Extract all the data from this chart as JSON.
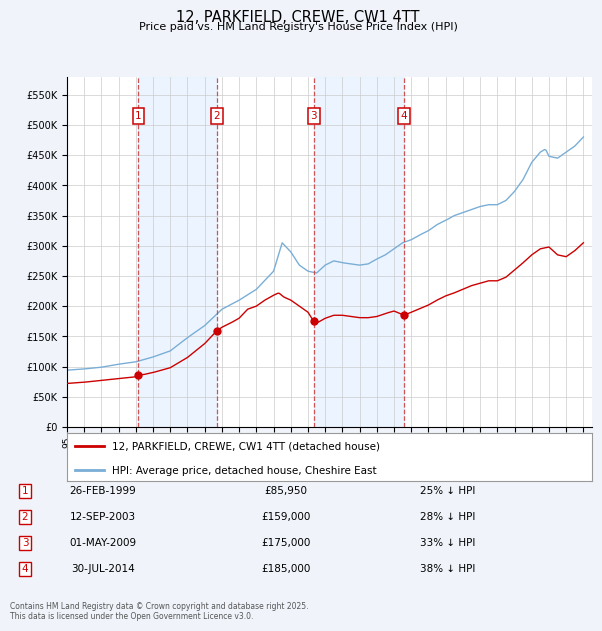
{
  "title": "12, PARKFIELD, CREWE, CW1 4TT",
  "subtitle": "Price paid vs. HM Land Registry's House Price Index (HPI)",
  "ylim": [
    0,
    580000
  ],
  "yticks": [
    0,
    50000,
    100000,
    150000,
    200000,
    250000,
    300000,
    350000,
    400000,
    450000,
    500000,
    550000
  ],
  "background_color": "#f0f4fa",
  "plot_bg_color": "#ffffff",
  "legend_label_red": "12, PARKFIELD, CREWE, CW1 4TT (detached house)",
  "legend_label_blue": "HPI: Average price, detached house, Cheshire East",
  "footer": "Contains HM Land Registry data © Crown copyright and database right 2025.\nThis data is licensed under the Open Government Licence v3.0.",
  "sale_points": [
    {
      "num": 1,
      "date": "26-FEB-1999",
      "year": 1999.15,
      "price": 85950,
      "pct": "25%",
      "dir": "↓"
    },
    {
      "num": 2,
      "date": "12-SEP-2003",
      "year": 2003.7,
      "price": 159000,
      "pct": "28%",
      "dir": "↓"
    },
    {
      "num": 3,
      "date": "01-MAY-2009",
      "year": 2009.33,
      "price": 175000,
      "pct": "33%",
      "dir": "↓"
    },
    {
      "num": 4,
      "date": "30-JUL-2014",
      "year": 2014.58,
      "price": 185000,
      "pct": "38%",
      "dir": "↓"
    }
  ],
  "grid_color": "#cccccc",
  "red_color": "#cc0000",
  "blue_color": "#7aaed6",
  "vline_color": "#cc4444",
  "box_color": "#cc0000",
  "shade_color": "#ddeeff",
  "xlim": [
    1995,
    2025.5
  ],
  "xtick_start": 1995,
  "xtick_end": 2025
}
